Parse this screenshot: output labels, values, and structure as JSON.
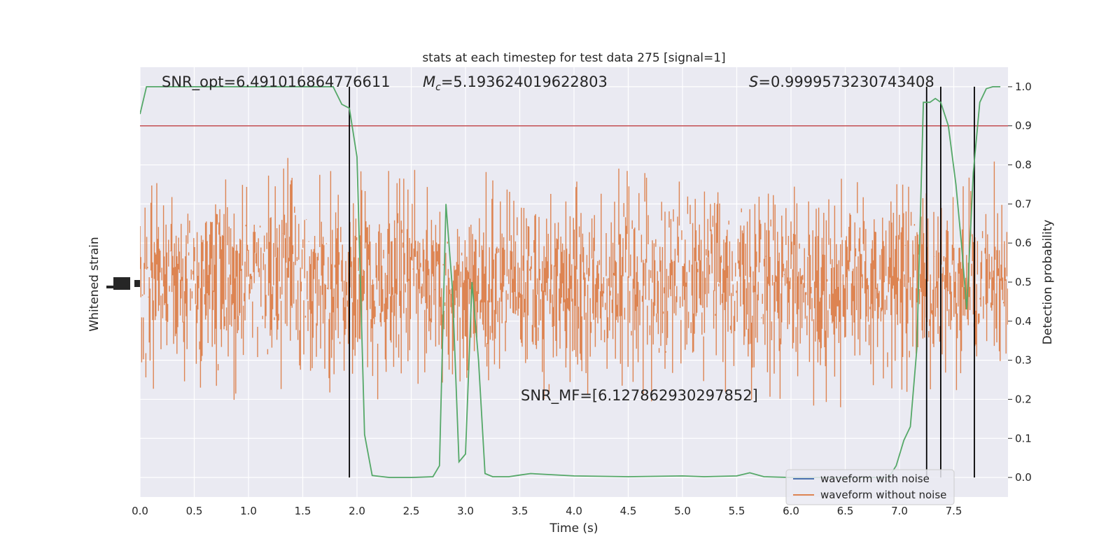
{
  "chart_data": {
    "type": "line",
    "title": "stats at each timestep for test data 275 [signal=1]",
    "xlabel": "Time (s)",
    "ylabel_left": "Whitened strain",
    "ylabel_right": "Detection probability",
    "xlim": [
      0.0,
      8.0
    ],
    "ylim_right": [
      -0.05,
      1.05
    ],
    "x_ticks": [
      "0.0",
      "0.5",
      "1.0",
      "1.5",
      "2.0",
      "2.5",
      "3.0",
      "3.5",
      "4.0",
      "4.5",
      "5.0",
      "5.5",
      "6.0",
      "6.5",
      "7.0",
      "7.5"
    ],
    "y_right_ticks": [
      "0.0",
      "0.1",
      "0.2",
      "0.3",
      "0.4",
      "0.5",
      "0.6",
      "0.7",
      "0.8",
      "0.9",
      "1.0"
    ],
    "grid": true,
    "legend_position": "lower-right",
    "colors": {
      "background": "#eaeaf2",
      "grid": "#ffffff",
      "waveform_noise": "#4c72b0",
      "waveform_clean": "#dd8452",
      "probability": "#55a868",
      "threshold": "#c44e52",
      "event_lines": "#000000"
    },
    "annotations": {
      "snr_opt": "SNR_opt=6.491016864776611",
      "mc": "=5.193624019622803",
      "s": "=0.9999573230743408",
      "snr_mf": "SNR_MF=[6.127862930297852]"
    },
    "threshold": 0.9,
    "event_times": [
      1.93,
      7.25,
      7.38,
      7.69
    ],
    "series": [
      {
        "name": "waveform with noise",
        "color": "#4c72b0",
        "axis": "left"
      },
      {
        "name": "waveform without noise",
        "color": "#dd8452",
        "axis": "left"
      },
      {
        "color": "#55a868",
        "axis": "right",
        "x": [
          0.0,
          0.06,
          0.2,
          0.5,
          1.0,
          1.5,
          1.78,
          1.86,
          1.93,
          2.0,
          2.07,
          2.14,
          2.2,
          2.3,
          2.5,
          2.7,
          2.76,
          2.82,
          2.88,
          2.94,
          3.0,
          3.06,
          3.12,
          3.18,
          3.25,
          3.4,
          3.5,
          3.6,
          4.0,
          4.5,
          5.0,
          5.2,
          5.5,
          5.62,
          5.75,
          6.0,
          6.5,
          6.9,
          6.97,
          7.04,
          7.1,
          7.16,
          7.22,
          7.28,
          7.33,
          7.38,
          7.45,
          7.52,
          7.57,
          7.62,
          7.68,
          7.74,
          7.8,
          7.86,
          7.93
        ],
        "y": [
          0.93,
          1.0,
          1.0,
          1.0,
          1.0,
          1.0,
          1.0,
          0.955,
          0.945,
          0.82,
          0.11,
          0.005,
          0.003,
          0.0,
          0.0,
          0.002,
          0.03,
          0.7,
          0.48,
          0.04,
          0.06,
          0.5,
          0.3,
          0.01,
          0.002,
          0.002,
          0.006,
          0.01,
          0.004,
          0.002,
          0.004,
          0.002,
          0.004,
          0.012,
          0.002,
          0.0,
          0.0,
          0.0,
          0.03,
          0.095,
          0.13,
          0.33,
          0.96,
          0.96,
          0.97,
          0.96,
          0.9,
          0.75,
          0.6,
          0.43,
          0.78,
          0.96,
          0.995,
          1.0,
          1.0
        ]
      }
    ]
  }
}
